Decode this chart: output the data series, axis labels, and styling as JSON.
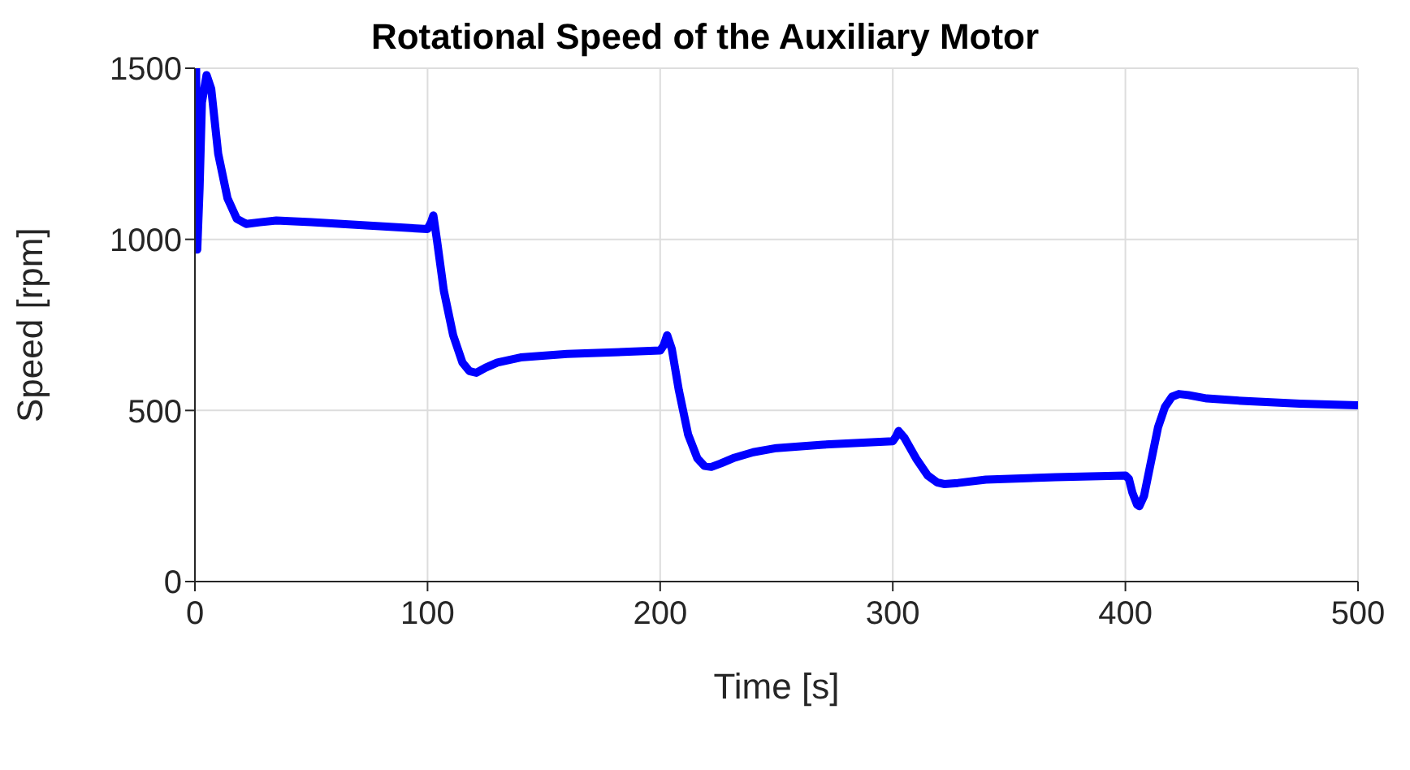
{
  "chart_data": {
    "type": "line",
    "title": "Rotational Speed of the Auxiliary Motor",
    "xlabel": "Time [s]",
    "ylabel": "Speed [rpm]",
    "series": [
      {
        "color": "#0000ff",
        "x": [
          0,
          0.5,
          1,
          2,
          3,
          5,
          7,
          10,
          14,
          18,
          22,
          28,
          35,
          50,
          75,
          100,
          101.5,
          102.5,
          104,
          107,
          111,
          115,
          118,
          121,
          125,
          130,
          140,
          160,
          200,
          201.5,
          203,
          205,
          208,
          212,
          216,
          219,
          222,
          226,
          232,
          240,
          250,
          270,
          300,
          301.5,
          302.5,
          305,
          310,
          315,
          319,
          322,
          328,
          340,
          370,
          400,
          401.5,
          403,
          405,
          406,
          408,
          411,
          414,
          417,
          420,
          423,
          427,
          435,
          450,
          475,
          500
        ],
        "values": [
          980,
          1500,
          970,
          1150,
          1400,
          1480,
          1440,
          1250,
          1120,
          1060,
          1045,
          1050,
          1055,
          1050,
          1040,
          1030,
          1050,
          1070,
          1000,
          850,
          720,
          640,
          615,
          610,
          625,
          640,
          655,
          665,
          675,
          690,
          720,
          680,
          560,
          430,
          360,
          338,
          335,
          345,
          362,
          378,
          390,
          400,
          410,
          425,
          440,
          420,
          360,
          310,
          290,
          285,
          288,
          298,
          305,
          310,
          300,
          260,
          225,
          220,
          250,
          350,
          450,
          510,
          540,
          548,
          545,
          535,
          528,
          520,
          515
        ]
      }
    ],
    "xlim": [
      0,
      500
    ],
    "xticks": [
      0,
      100,
      200,
      300,
      400,
      500
    ],
    "ylim": [
      0,
      1500
    ],
    "yticks": [
      0,
      500,
      1000,
      1500
    ],
    "grid": true,
    "line_style": "solid"
  }
}
